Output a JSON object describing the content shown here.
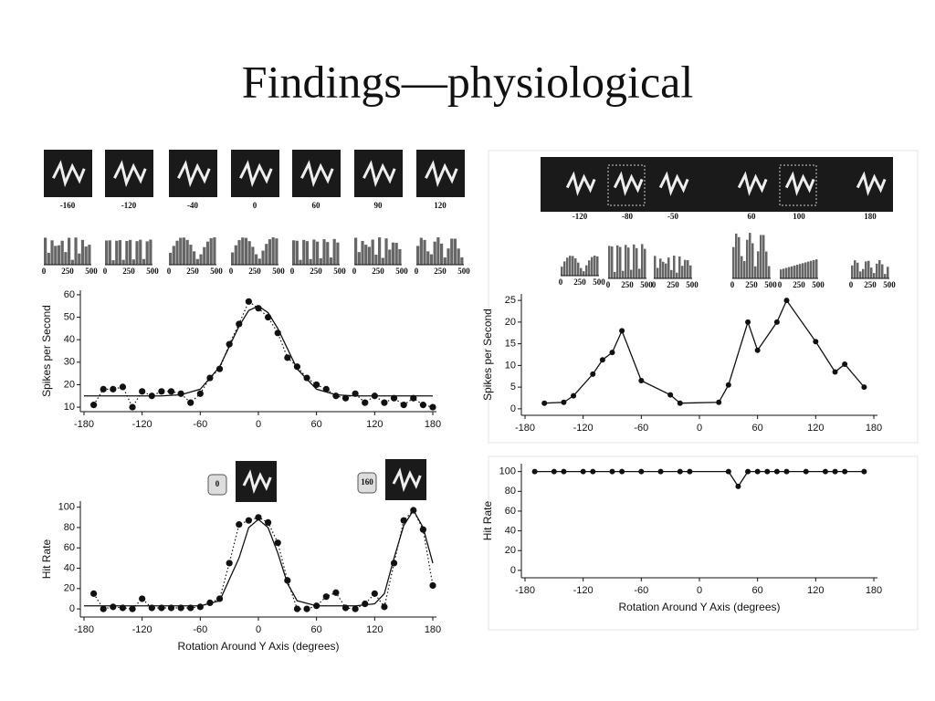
{
  "title": "Findings—physiological",
  "stimuli_left": {
    "labels": [
      -160,
      -120,
      -40,
      0,
      60,
      90,
      120
    ]
  },
  "stimuli_right": {
    "labels": [
      -120,
      -80,
      -50,
      60,
      100,
      180
    ]
  },
  "histogram_ticks": [
    0,
    250,
    500
  ],
  "chart_data": [
    {
      "type": "scatter",
      "ylabel": "Spikes per Second",
      "xlim": [
        -180,
        180
      ],
      "xticks": [
        -180,
        -120,
        -60,
        0,
        60,
        120,
        180
      ],
      "ylim": [
        8,
        62
      ],
      "yticks": [
        10,
        20,
        30,
        40,
        50,
        60
      ],
      "series": [
        {
          "color": "#111111",
          "marker": true,
          "dash": "dotted",
          "x": [
            -170,
            -160,
            -150,
            -140,
            -130,
            -120,
            -110,
            -100,
            -90,
            -80,
            -70,
            -60,
            -50,
            -40,
            -30,
            -20,
            -10,
            0,
            10,
            20,
            30,
            40,
            50,
            60,
            70,
            80,
            90,
            100,
            110,
            120,
            130,
            140,
            150,
            160,
            170,
            180
          ],
          "values": [
            11,
            18,
            18,
            19,
            10,
            17,
            15,
            17,
            17,
            16,
            12,
            16,
            23,
            27,
            38,
            47,
            57,
            54,
            50,
            43,
            32,
            28,
            23,
            20,
            18,
            15,
            14,
            16,
            12,
            15,
            12,
            14,
            11,
            14,
            11,
            10
          ]
        },
        {
          "color": "#111111",
          "marker": false,
          "dash": "solid",
          "x": [
            -180,
            -140,
            -100,
            -80,
            -60,
            -40,
            -20,
            -10,
            0,
            10,
            20,
            40,
            60,
            80,
            100,
            140,
            180
          ],
          "values": [
            15,
            15,
            15,
            15.5,
            18,
            28,
            46,
            53,
            55,
            52,
            45,
            27,
            18,
            15.5,
            15,
            15,
            15
          ]
        }
      ]
    },
    {
      "type": "scatter",
      "ylabel": "Hit Rate",
      "xlabel": "Rotation Around Y Axis (degrees)",
      "annotations": [
        0,
        160
      ],
      "xlim": [
        -180,
        180
      ],
      "xticks": [
        -180,
        -120,
        -60,
        0,
        60,
        120,
        180
      ],
      "ylim": [
        -8,
        106
      ],
      "yticks": [
        0,
        20,
        40,
        60,
        80,
        100
      ],
      "series": [
        {
          "color": "#111111",
          "marker": true,
          "dash": "dotted",
          "x": [
            -170,
            -160,
            -150,
            -140,
            -130,
            -120,
            -110,
            -100,
            -90,
            -80,
            -70,
            -60,
            -50,
            -40,
            -30,
            -20,
            -10,
            0,
            10,
            20,
            30,
            40,
            50,
            60,
            70,
            80,
            90,
            100,
            110,
            120,
            130,
            140,
            150,
            160,
            170,
            180
          ],
          "values": [
            15,
            0,
            2,
            1,
            0,
            10,
            1,
            1,
            1,
            1,
            1,
            2,
            6,
            10,
            45,
            83,
            87,
            90,
            85,
            65,
            28,
            0,
            0,
            3,
            12,
            16,
            1,
            0,
            5,
            15,
            2,
            45,
            87,
            97,
            78,
            23
          ]
        },
        {
          "color": "#111111",
          "marker": false,
          "dash": "solid",
          "x": [
            -180,
            -140,
            -100,
            -60,
            -40,
            -20,
            -10,
            0,
            10,
            20,
            30,
            40,
            60,
            100,
            120,
            130,
            140,
            150,
            160,
            170,
            180
          ],
          "values": [
            3,
            3,
            3,
            3,
            8,
            50,
            80,
            88,
            80,
            55,
            25,
            8,
            3,
            3,
            5,
            15,
            50,
            82,
            97,
            80,
            45
          ]
        }
      ]
    },
    {
      "type": "line",
      "ylabel": "Spikes per Second",
      "xlim": [
        -180,
        180
      ],
      "xticks": [
        -180,
        -120,
        -60,
        0,
        60,
        120,
        180
      ],
      "ylim": [
        -1.5,
        26.5
      ],
      "yticks": [
        0,
        5,
        10,
        15,
        20,
        25
      ],
      "series": [
        {
          "color": "#111111",
          "marker": true,
          "dash": "solid",
          "x": [
            -160,
            -140,
            -130,
            -110,
            -100,
            -90,
            -80,
            -60,
            -30,
            -20,
            20,
            30,
            50,
            60,
            80,
            90,
            120,
            140,
            150,
            170
          ],
          "values": [
            1.3,
            1.5,
            3,
            8,
            11.3,
            13,
            18,
            6.5,
            3.2,
            1.3,
            1.5,
            5.5,
            20,
            13.5,
            20,
            25,
            15.5,
            8.5,
            10.3,
            5
          ]
        }
      ]
    },
    {
      "type": "line",
      "ylabel": "Hit Rate",
      "xlabel": "Rotation Around Y Axis (degrees)",
      "xlim": [
        -180,
        180
      ],
      "xticks": [
        -180,
        -120,
        -60,
        0,
        60,
        120,
        180
      ],
      "ylim": [
        -7.5,
        108
      ],
      "yticks": [
        0,
        20,
        40,
        60,
        80,
        100
      ],
      "series": [
        {
          "color": "#111111",
          "marker": true,
          "dash": "solid",
          "x": [
            -170,
            -150,
            -140,
            -120,
            -110,
            -90,
            -80,
            -60,
            -40,
            -20,
            -10,
            30,
            40,
            50,
            60,
            70,
            80,
            90,
            110,
            130,
            140,
            150,
            170
          ],
          "values": [
            100,
            100,
            100,
            100,
            100,
            100,
            100,
            100,
            100,
            100,
            100,
            100,
            85,
            100,
            100,
            100,
            100,
            100,
            100,
            100,
            100,
            100,
            100
          ]
        }
      ]
    }
  ]
}
